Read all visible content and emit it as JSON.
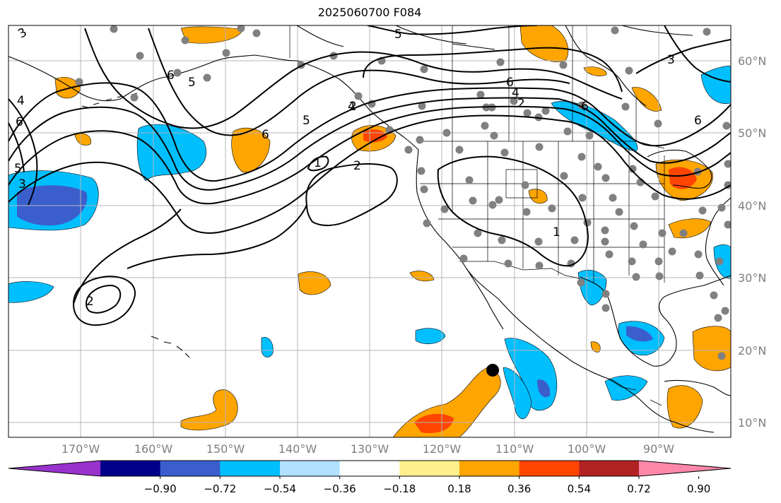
{
  "title": "2025060700 F084",
  "map": {
    "lat_labels": [
      "60°N",
      "50°N",
      "40°N",
      "30°N",
      "20°N",
      "10°N"
    ],
    "lon_labels": [
      "170°W",
      "160°W",
      "150°W",
      "140°W",
      "130°W",
      "120°W",
      "110°W",
      "100°W",
      "90°W"
    ],
    "contour_labels": [
      "3",
      "4",
      "6",
      "5",
      "3",
      "6",
      "5",
      "6",
      "4",
      "2",
      "5",
      "6",
      "2",
      "1",
      "2",
      "1",
      "2",
      "5",
      "4",
      "6",
      "3",
      "6"
    ],
    "marker": "black-dot",
    "station_markers": "grey-dots"
  },
  "colorbar": {
    "tick_labels": [
      "−0.90",
      "−0.72",
      "−0.54",
      "−0.36",
      "−0.18",
      "0.18",
      "0.36",
      "0.54",
      "0.72",
      "0.90"
    ],
    "colors": [
      "#9932cc",
      "#00008b",
      "#3a5fcd",
      "#00bfff",
      "#b0e2ff",
      "#ffffff",
      "#fff08c",
      "#ffa500",
      "#ff4500",
      "#b22222",
      "#ff88aa"
    ]
  }
}
